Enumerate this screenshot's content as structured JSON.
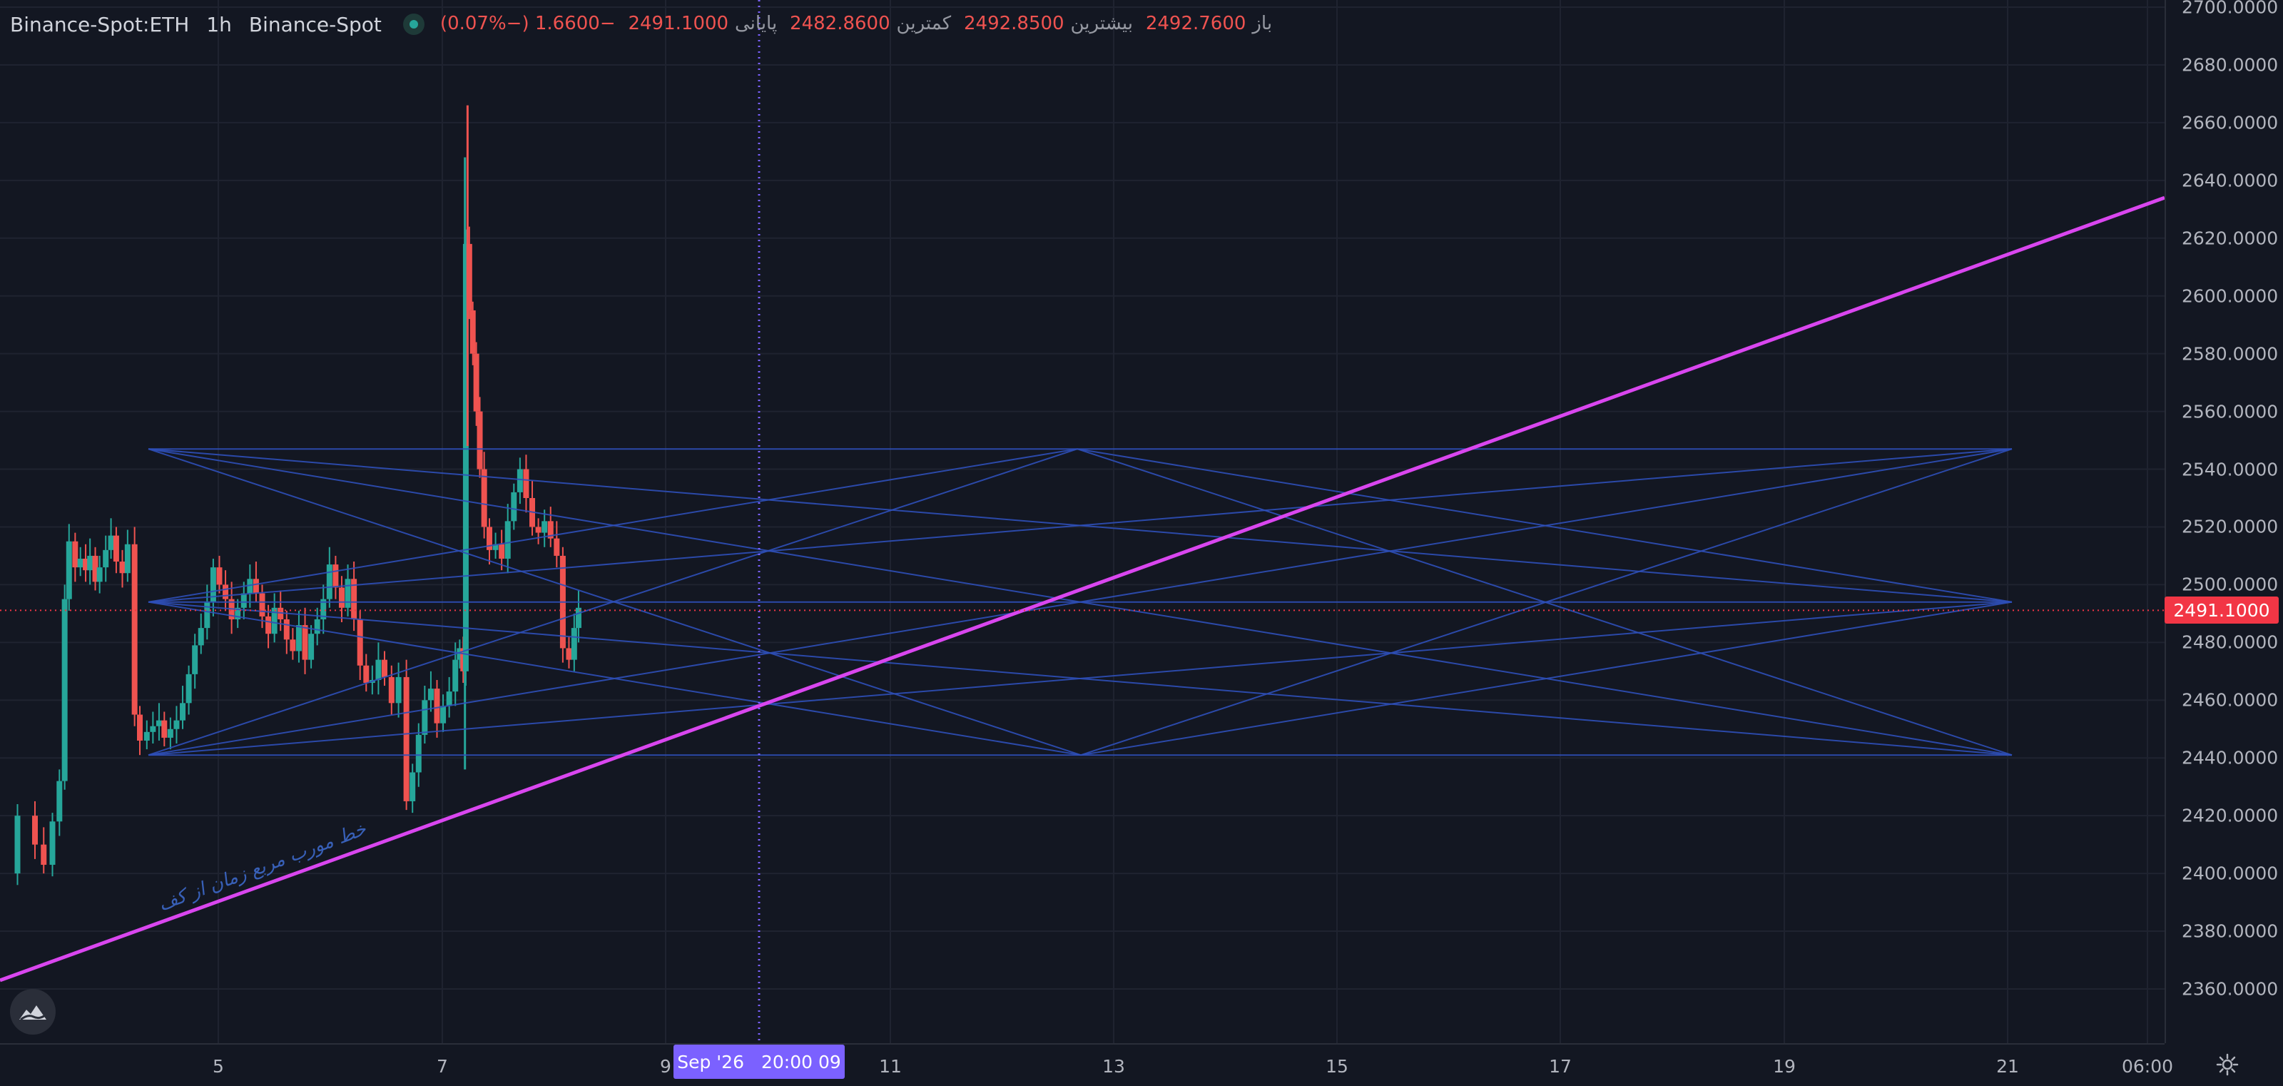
{
  "legend": {
    "symbol": "Binance-Spot:ETH",
    "interval": "1h",
    "exchange": "Binance-Spot",
    "open_label": "باز",
    "open_value": "2492.7600",
    "high_label": "بیشترین",
    "high_value": "2492.8500",
    "low_label": "کمترین",
    "low_value": "2482.8600",
    "close_label": "پایانی",
    "close_value": "2491.1000",
    "change_value": "−1.6600 (−0.07%)"
  },
  "price_axis": {
    "ticks": [
      "2700.0000",
      "2680.0000",
      "2660.0000",
      "2640.0000",
      "2620.0000",
      "2600.0000",
      "2580.0000",
      "2560.0000",
      "2540.0000",
      "2520.0000",
      "2500.0000",
      "2480.0000",
      "2460.0000",
      "2440.0000",
      "2420.0000",
      "2400.0000",
      "2380.0000",
      "2360.0000"
    ],
    "last_price": "2491.1000"
  },
  "time_axis": {
    "ticks": [
      "5",
      "7",
      "9",
      "11",
      "13",
      "15",
      "17",
      "19",
      "21",
      "06:00"
    ],
    "crosshair_date": "Sep '26",
    "crosshair_time": "20:00 09"
  },
  "drawing_note": "خط مورب مربع زمان از کف",
  "colors": {
    "background": "#131722",
    "up": "#26a69a",
    "down": "#ef5350",
    "trendline": "#d946ef",
    "square_lines": "#2e4fb8",
    "crosshair": "#7b61ff",
    "price_tag": "#f23645"
  },
  "icons": {
    "settings": "gear-icon",
    "logo": "logo-icon",
    "status": "market-open-dot"
  },
  "chart_data": {
    "type": "candlestick",
    "symbol": "Binance-Spot:ETH",
    "interval": "1h",
    "ylim": [
      2345,
      2700
    ],
    "close_series": [
      [
        0.0,
        2400
      ],
      [
        1.0,
        2420
      ],
      [
        2.0,
        2410
      ],
      [
        2.5,
        2403
      ],
      [
        3.0,
        2418
      ],
      [
        3.4,
        2432
      ],
      [
        3.7,
        2495
      ],
      [
        3.95,
        2515
      ],
      [
        4.3,
        2506
      ],
      [
        4.6,
        2509
      ],
      [
        4.9,
        2505
      ],
      [
        5.15,
        2510
      ],
      [
        5.45,
        2501
      ],
      [
        5.7,
        2506
      ],
      [
        6.05,
        2512
      ],
      [
        6.35,
        2517
      ],
      [
        6.65,
        2508
      ],
      [
        7.0,
        2504
      ],
      [
        7.3,
        2514
      ],
      [
        7.7,
        2455
      ],
      [
        8.0,
        2446
      ],
      [
        8.4,
        2449
      ],
      [
        8.75,
        2451
      ],
      [
        9.1,
        2453
      ],
      [
        9.4,
        2447
      ],
      [
        9.75,
        2450
      ],
      [
        10.1,
        2453
      ],
      [
        10.45,
        2459
      ],
      [
        10.8,
        2469
      ],
      [
        11.15,
        2479
      ],
      [
        11.5,
        2485
      ],
      [
        11.85,
        2494
      ],
      [
        12.2,
        2506
      ],
      [
        12.55,
        2500
      ],
      [
        12.9,
        2495
      ],
      [
        13.25,
        2488
      ],
      [
        13.6,
        2492
      ],
      [
        13.95,
        2497
      ],
      [
        14.3,
        2502
      ],
      [
        14.65,
        2497
      ],
      [
        15.0,
        2489
      ],
      [
        15.35,
        2483
      ],
      [
        15.7,
        2492
      ],
      [
        16.05,
        2488
      ],
      [
        16.4,
        2481
      ],
      [
        16.75,
        2477
      ],
      [
        17.1,
        2486
      ],
      [
        17.45,
        2474
      ],
      [
        17.8,
        2483
      ],
      [
        18.15,
        2488
      ],
      [
        18.5,
        2495
      ],
      [
        18.85,
        2507
      ],
      [
        19.2,
        2499
      ],
      [
        19.55,
        2492
      ],
      [
        19.9,
        2502
      ],
      [
        20.25,
        2488
      ],
      [
        20.6,
        2472
      ],
      [
        20.95,
        2466
      ],
      [
        21.3,
        2467
      ],
      [
        21.65,
        2474
      ],
      [
        22.0,
        2468
      ],
      [
        22.4,
        2459
      ],
      [
        22.8,
        2468
      ],
      [
        23.25,
        2425
      ],
      [
        23.6,
        2435
      ],
      [
        23.95,
        2448
      ],
      [
        24.3,
        2460
      ],
      [
        24.65,
        2464
      ],
      [
        25.0,
        2452
      ],
      [
        25.35,
        2458
      ],
      [
        25.7,
        2463
      ],
      [
        26.05,
        2474
      ],
      [
        26.3,
        2478
      ],
      [
        26.5,
        2470
      ],
      [
        26.65,
        2618
      ],
      [
        26.85,
        2595
      ],
      [
        27.05,
        2580
      ],
      [
        27.25,
        2560
      ],
      [
        27.45,
        2540
      ],
      [
        27.7,
        2520
      ],
      [
        28.0,
        2512
      ],
      [
        28.35,
        2514
      ],
      [
        28.7,
        2509
      ],
      [
        29.05,
        2522
      ],
      [
        29.4,
        2532
      ],
      [
        29.75,
        2540
      ],
      [
        30.1,
        2530
      ],
      [
        30.45,
        2520
      ],
      [
        30.8,
        2518
      ],
      [
        31.15,
        2522
      ],
      [
        31.5,
        2516
      ],
      [
        31.85,
        2510
      ],
      [
        32.2,
        2478
      ],
      [
        32.55,
        2474
      ],
      [
        32.85,
        2485
      ],
      [
        33.1,
        2492
      ]
    ],
    "x_unit": "x positions are in hours-grid units where 1 unit = one candle column",
    "trendline": {
      "from_price": 2363,
      "to_price": 2634
    },
    "last_price": 2491.1,
    "crosshair_x_label": "Sep '26 20:00 09"
  }
}
